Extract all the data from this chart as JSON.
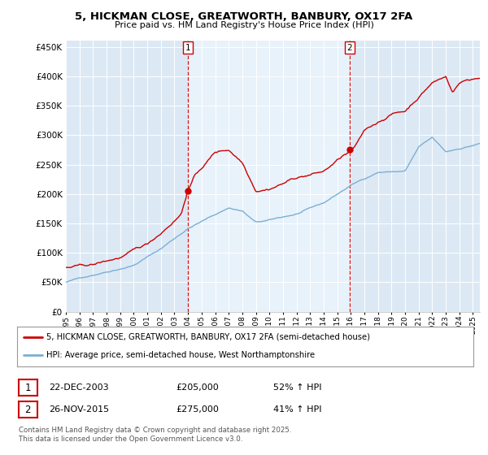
{
  "title": "5, HICKMAN CLOSE, GREATWORTH, BANBURY, OX17 2FA",
  "subtitle": "Price paid vs. HM Land Registry's House Price Index (HPI)",
  "property_label": "5, HICKMAN CLOSE, GREATWORTH, BANBURY, OX17 2FA (semi-detached house)",
  "hpi_label": "HPI: Average price, semi-detached house, West Northamptonshire",
  "footnote": "Contains HM Land Registry data © Crown copyright and database right 2025.\nThis data is licensed under the Open Government Licence v3.0.",
  "annotation1": {
    "num": "1",
    "date": "22-DEC-2003",
    "price": "£205,000",
    "pct": "52% ↑ HPI"
  },
  "annotation2": {
    "num": "2",
    "date": "26-NOV-2015",
    "price": "£275,000",
    "pct": "41% ↑ HPI"
  },
  "property_color": "#cc0000",
  "hpi_color": "#7bafd4",
  "vline_color": "#cc0000",
  "background_color": "#ffffff",
  "plot_bg_color": "#dce9f5",
  "highlight_bg_color": "#e8f2fb",
  "ylim": [
    0,
    460000
  ],
  "yticks": [
    0,
    50000,
    100000,
    150000,
    200000,
    250000,
    300000,
    350000,
    400000,
    450000
  ],
  "sale1_year": 2003.97,
  "sale2_year": 2015.92,
  "sale1_price": 205000,
  "sale2_price": 275000
}
